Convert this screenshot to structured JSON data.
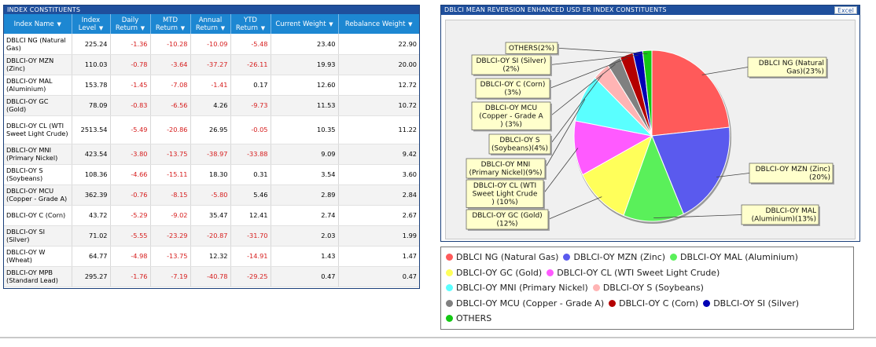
{
  "table_panel": {
    "title": "INDEX CONSTITUENTS",
    "columns": [
      {
        "label": "Index Name",
        "arrow": "▼"
      },
      {
        "label": "Index Level",
        "arrow": "▼"
      },
      {
        "label": "Daily Return",
        "arrow": "▼"
      },
      {
        "label": "MTD Return",
        "arrow": "▼"
      },
      {
        "label": "Annual Return",
        "arrow": "▼"
      },
      {
        "label": "YTD Return",
        "arrow": "▼"
      },
      {
        "label": "Current Weight",
        "arrow": "▼"
      },
      {
        "label": "Rebalance Weight",
        "arrow": "▼"
      }
    ],
    "rows": [
      {
        "name": "DBLCI NG (Natural Gas)",
        "level": "225.24",
        "daily": "-1.36",
        "mtd": "-10.28",
        "annual": "-10.09",
        "ytd": "-5.48",
        "current": "23.40",
        "rebalance": "22.90"
      },
      {
        "name": "DBLCI-OY MZN (Zinc)",
        "level": "110.03",
        "daily": "-0.78",
        "mtd": "-3.64",
        "annual": "-37.27",
        "ytd": "-26.11",
        "current": "19.93",
        "rebalance": "20.00"
      },
      {
        "name": "DBLCI-OY MAL (Aluminium)",
        "level": "153.78",
        "daily": "-1.45",
        "mtd": "-7.08",
        "annual": "-1.41",
        "ytd": "0.17",
        "current": "12.60",
        "rebalance": "12.72"
      },
      {
        "name": "DBLCI-OY GC (Gold)",
        "level": "78.09",
        "daily": "-0.83",
        "mtd": "-6.56",
        "annual": "4.26",
        "ytd": "-9.73",
        "current": "11.53",
        "rebalance": "10.72"
      },
      {
        "name": "DBLCI-OY CL (WTI Sweet Light Crude)",
        "level": "2513.54",
        "daily": "-5.49",
        "mtd": "-20.86",
        "annual": "26.95",
        "ytd": "-0.05",
        "current": "10.35",
        "rebalance": "11.22"
      },
      {
        "name": "DBLCI-OY MNI (Primary Nickel)",
        "level": "423.54",
        "daily": "-3.80",
        "mtd": "-13.75",
        "annual": "-38.97",
        "ytd": "-33.88",
        "current": "9.09",
        "rebalance": "9.42"
      },
      {
        "name": "DBLCI-OY S (Soybeans)",
        "level": "108.36",
        "daily": "-4.66",
        "mtd": "-15.11",
        "annual": "18.30",
        "ytd": "0.31",
        "current": "3.54",
        "rebalance": "3.60"
      },
      {
        "name": "DBLCI-OY MCU (Copper - Grade A)",
        "level": "362.39",
        "daily": "-0.76",
        "mtd": "-8.15",
        "annual": "-5.80",
        "ytd": "5.46",
        "current": "2.89",
        "rebalance": "2.84"
      },
      {
        "name": "DBLCI-OY C (Corn)",
        "level": "43.72",
        "daily": "-5.29",
        "mtd": "-9.02",
        "annual": "35.47",
        "ytd": "12.41",
        "current": "2.74",
        "rebalance": "2.67"
      },
      {
        "name": "DBLCI-OY SI (Silver)",
        "level": "71.02",
        "daily": "-5.55",
        "mtd": "-23.29",
        "annual": "-20.87",
        "ytd": "-31.70",
        "current": "2.03",
        "rebalance": "1.99"
      },
      {
        "name": "DBLCI-OY W (Wheat)",
        "level": "64.77",
        "daily": "-4.98",
        "mtd": "-13.75",
        "annual": "12.32",
        "ytd": "-14.91",
        "current": "1.43",
        "rebalance": "1.47"
      },
      {
        "name": "DBLCI-OY MPB (Standard Lead)",
        "level": "295.27",
        "daily": "-1.76",
        "mtd": "-7.19",
        "annual": "-40.78",
        "ytd": "-29.25",
        "current": "0.47",
        "rebalance": "0.47"
      }
    ]
  },
  "chart_panel": {
    "title": "DBLCI MEAN REVERSION ENHANCED USD ER INDEX CONSTITUENTS",
    "excel_label": "Excel"
  },
  "chart_data": {
    "type": "pie",
    "title": "DBLCI MEAN REVERSION ENHANCED USD ER INDEX CONSTITUENTS",
    "slices": [
      {
        "name": "DBLCI NG (Natural Gas)",
        "value": 23.4,
        "color": "#ff5a5a",
        "callout": "DBLCI NG (Natural Gas)(23%)"
      },
      {
        "name": "DBLCI-OY MZN (Zinc)",
        "value": 19.93,
        "color": "#5a5aee",
        "callout": "DBLCI-OY MZN (Zinc) (20%)"
      },
      {
        "name": "DBLCI-OY MAL (Aluminium)",
        "value": 12.6,
        "color": "#5af05a",
        "callout": "DBLCI-OY MAL (Aluminium)(13%)"
      },
      {
        "name": "DBLCI-OY GC (Gold)",
        "value": 11.53,
        "color": "#ffff5a",
        "callout": "DBLCI-OY GC (Gold) (12%)"
      },
      {
        "name": "DBLCI-OY CL (WTI Sweet Light Crude)",
        "value": 10.35,
        "color": "#ff5aff",
        "callout": "DBLCI-OY CL (WTI Sweet Light Crude) (10%)"
      },
      {
        "name": "DBLCI-OY MNI (Primary Nickel)",
        "value": 9.09,
        "color": "#5affff",
        "callout": "DBLCI-OY MNI (Primary Nickel)(9%)"
      },
      {
        "name": "DBLCI-OY S (Soybeans)",
        "value": 3.54,
        "color": "#ffb4b4",
        "callout": "DBLCI-OY S (Soybeans)(4%)"
      },
      {
        "name": "DBLCI-OY MCU (Copper - Grade A)",
        "value": 2.89,
        "color": "#808080",
        "callout": "DBLCI-OY MCU (Copper - Grade A) (3%)"
      },
      {
        "name": "DBLCI-OY C (Corn)",
        "value": 2.74,
        "color": "#b40000",
        "callout": "DBLCI-OY C (Corn) (3%)"
      },
      {
        "name": "DBLCI-OY SI (Silver)",
        "value": 2.03,
        "color": "#0000b4",
        "callout": "DBLCI-OY SI (Silver) (2%)"
      },
      {
        "name": "OTHERS",
        "value": 1.9,
        "color": "#14c814",
        "callout": "OTHERS(2%)"
      }
    ],
    "legend_rows": [
      [
        "DBLCI NG (Natural Gas)",
        "DBLCI-OY MZN (Zinc)",
        "DBLCI-OY MAL (Aluminium)"
      ],
      [
        "DBLCI-OY GC (Gold)",
        "DBLCI-OY CL (WTI Sweet Light Crude)"
      ],
      [
        "DBLCI-OY MNI (Primary Nickel)",
        "DBLCI-OY S (Soybeans)"
      ],
      [
        "DBLCI-OY MCU (Copper - Grade A)",
        "DBLCI-OY C (Corn)",
        "DBLCI-OY SI (Silver)"
      ],
      [
        "OTHERS"
      ]
    ]
  }
}
